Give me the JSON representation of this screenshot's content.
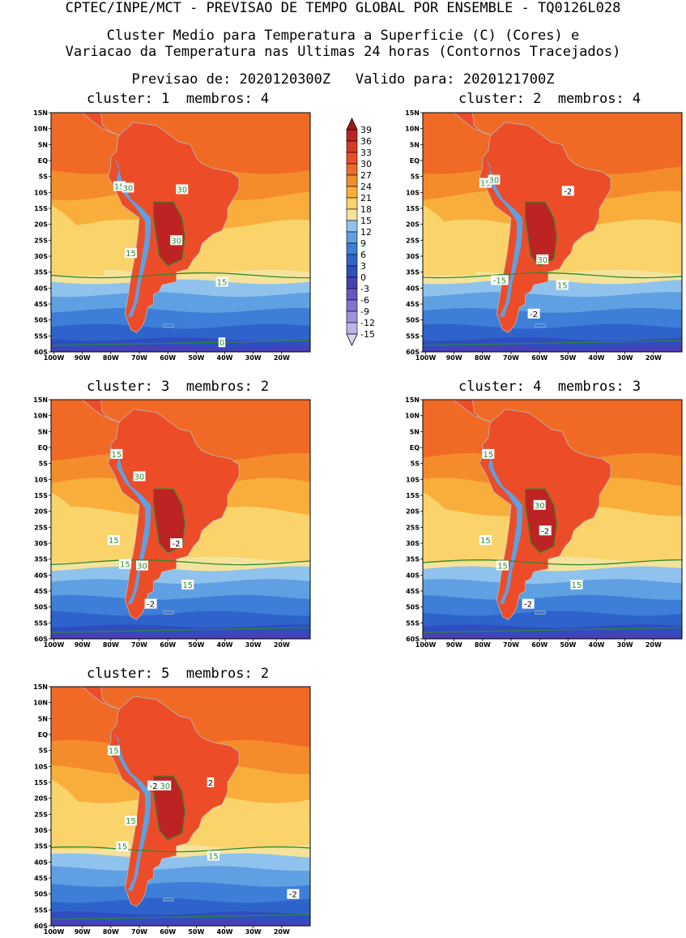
{
  "header": {
    "line1": "CPTEC/INPE/MCT - PREVISAO DE TEMPO GLOBAL POR ENSEMBLE - TQ0126L028",
    "line2": "Cluster Medio para Temperatura a Superficie (C) (Cores) e",
    "line3": "Variacao da Temperatura nas Ultimas 24 horas (Contornos Tracejados)",
    "line4": "Previsao de: 2020120300Z   Valido para: 2020121700Z"
  },
  "colorbar": {
    "labels": [
      "39",
      "36",
      "33",
      "30",
      "27",
      "24",
      "21",
      "18",
      "15",
      "12",
      "9",
      "6",
      "3",
      "0",
      "-3",
      "-6",
      "-9",
      "-12",
      "-15"
    ],
    "colors": [
      "#9e1a1a",
      "#be2323",
      "#d93a26",
      "#ec4d28",
      "#f06a26",
      "#f58c2c",
      "#f9ae3b",
      "#fad36b",
      "#f4e39c",
      "#8fc3ee",
      "#5fa0e2",
      "#3d7ed8",
      "#2f63cc",
      "#2f4dc0",
      "#4840b6",
      "#6656c2",
      "#8473cf",
      "#a191db",
      "#c2b2e8",
      "#ddd4f2"
    ]
  },
  "axes": {
    "lat_labels": [
      "15N",
      "10N",
      "5N",
      "EQ",
      "5S",
      "10S",
      "15S",
      "20S",
      "25S",
      "30S",
      "35S",
      "40S",
      "45S",
      "50S",
      "55S",
      "60S"
    ],
    "lon_labels": [
      "100W",
      "90W",
      "80W",
      "70W",
      "60W",
      "50W",
      "40W",
      "30W",
      "20W"
    ]
  },
  "panels": [
    {
      "title": "cluster: 1  membros: 4",
      "labels": [
        {
          "t": "15",
          "lon": -77,
          "lat": -8,
          "c": "g"
        },
        {
          "t": "30",
          "lon": -74,
          "lat": -8.5,
          "c": "g"
        },
        {
          "t": "30",
          "lon": -55,
          "lat": -9,
          "c": "g"
        },
        {
          "t": "30",
          "lon": -57,
          "lat": -25,
          "c": "g"
        },
        {
          "t": "15",
          "lon": -73,
          "lat": -29,
          "c": "g"
        },
        {
          "t": "15",
          "lon": -41,
          "lat": -38,
          "c": "g"
        },
        {
          "t": "0",
          "lon": -41,
          "lat": -57,
          "c": "g"
        }
      ]
    },
    {
      "title": "cluster: 2  membros: 4",
      "labels": [
        {
          "t": "15",
          "lon": -79,
          "lat": -7,
          "c": "g"
        },
        {
          "t": "30",
          "lon": -76,
          "lat": -6,
          "c": "g"
        },
        {
          "t": "-2",
          "lon": -50,
          "lat": -9.5,
          "c": "w"
        },
        {
          "t": "30",
          "lon": -59,
          "lat": -31,
          "c": "g"
        },
        {
          "t": "-15",
          "lon": -74,
          "lat": -37.5,
          "c": "g"
        },
        {
          "t": "15",
          "lon": -52,
          "lat": -39,
          "c": "g"
        },
        {
          "t": "-2",
          "lon": -62,
          "lat": -48,
          "c": "w"
        }
      ]
    },
    {
      "title": "cluster: 3  membros: 2",
      "labels": [
        {
          "t": "15",
          "lon": -78,
          "lat": -2,
          "c": "g"
        },
        {
          "t": "30",
          "lon": -70,
          "lat": -9,
          "c": "g"
        },
        {
          "t": "-2",
          "lon": -57,
          "lat": -30,
          "c": "w"
        },
        {
          "t": "15",
          "lon": -79,
          "lat": -29,
          "c": "g"
        },
        {
          "t": "15",
          "lon": -75,
          "lat": -36.5,
          "c": "g"
        },
        {
          "t": "30",
          "lon": -69,
          "lat": -37,
          "c": "g"
        },
        {
          "t": "15",
          "lon": -53,
          "lat": -43,
          "c": "g"
        },
        {
          "t": "-2",
          "lon": -66,
          "lat": -49,
          "c": "w"
        }
      ]
    },
    {
      "title": "cluster: 4  membros: 3",
      "labels": [
        {
          "t": "15",
          "lon": -78,
          "lat": -2,
          "c": "g"
        },
        {
          "t": "30",
          "lon": -60,
          "lat": -18,
          "c": "g"
        },
        {
          "t": "-2",
          "lon": -58,
          "lat": -26,
          "c": "w"
        },
        {
          "t": "15",
          "lon": -79,
          "lat": -29,
          "c": "g"
        },
        {
          "t": "15",
          "lon": -73,
          "lat": -37,
          "c": "g"
        },
        {
          "t": "15",
          "lon": -47,
          "lat": -43,
          "c": "g"
        },
        {
          "t": "-2",
          "lon": -64,
          "lat": -49,
          "c": "w"
        }
      ]
    },
    {
      "title": "cluster: 5  membros: 2",
      "labels": [
        {
          "t": "15",
          "lon": -79,
          "lat": -5,
          "c": "g"
        },
        {
          "t": "-2",
          "lon": -65,
          "lat": -16,
          "c": "w"
        },
        {
          "t": "30",
          "lon": -61,
          "lat": -16,
          "c": "g"
        },
        {
          "t": "2",
          "lon": -45,
          "lat": -15,
          "c": "w"
        },
        {
          "t": "15",
          "lon": -73,
          "lat": -27,
          "c": "g"
        },
        {
          "t": "15",
          "lon": -76,
          "lat": -35,
          "c": "g"
        },
        {
          "t": "15",
          "lon": -44,
          "lat": -38,
          "c": "g"
        },
        {
          "t": "-2",
          "lon": -16,
          "lat": -50,
          "c": "w"
        }
      ]
    }
  ]
}
